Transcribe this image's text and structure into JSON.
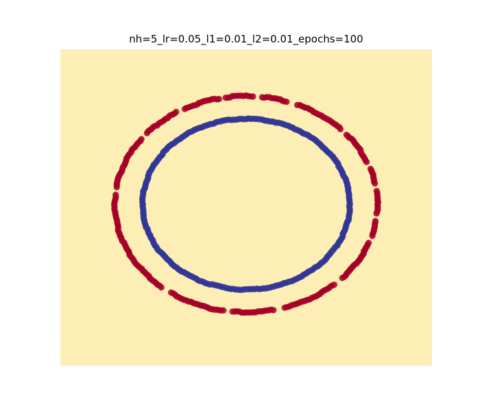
{
  "chart_data": {
    "type": "scatter",
    "title": "nh=5_lr=0.05_l1=0.01_l2=0.01_epochs=100",
    "xlabel": "",
    "ylabel": "",
    "axes_visible": false,
    "grid": false,
    "xlim": [
      -1.35,
      1.35
    ],
    "ylim": [
      -1.3,
      1.3
    ],
    "background_color": "#fdeeb5",
    "series": [
      {
        "color": "#a50026",
        "shape": "circle",
        "radius": 0.95,
        "gaps_deg": [
          [
            8,
            10
          ],
          [
            20,
            22
          ],
          [
            41,
            43
          ],
          [
            68,
            71
          ],
          [
            84,
            86
          ],
          [
            100,
            101
          ],
          [
            119,
            121
          ],
          [
            140,
            142
          ],
          [
            172,
            174
          ],
          [
            231,
            234
          ],
          [
            261,
            263
          ],
          [
            283,
            286
          ],
          [
            313,
            316
          ],
          [
            340,
            342
          ],
          [
            352,
            354
          ]
        ]
      },
      {
        "color": "#313695",
        "shape": "circle",
        "radius": 0.75,
        "gaps_deg": []
      }
    ]
  }
}
